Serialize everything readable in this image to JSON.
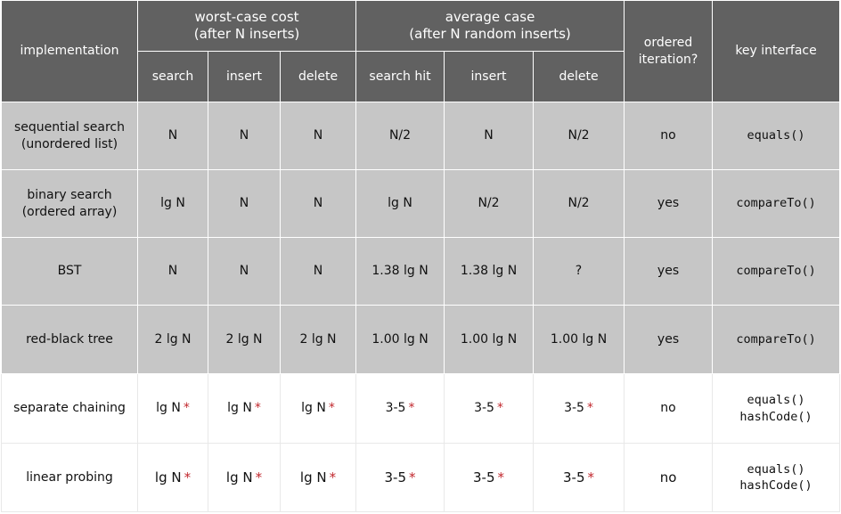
{
  "header": {
    "implementation": "implementation",
    "worst_title": "worst-case cost",
    "worst_sub": "(after N inserts)",
    "avg_title": "average case",
    "avg_sub": "(after N random inserts)",
    "ordered": "ordered iteration?",
    "key": "key interface",
    "worst_cols": [
      "search",
      "insert",
      "delete"
    ],
    "avg_cols": [
      "search hit",
      "insert",
      "delete"
    ]
  },
  "rows": [
    {
      "name": [
        "sequential search",
        "(unordered list)"
      ],
      "worst": [
        "N",
        "N",
        "N"
      ],
      "avg": [
        "N/2",
        "N",
        "N/2"
      ],
      "ordered": "no",
      "key": [
        "equals()"
      ]
    },
    {
      "name": [
        "binary search",
        "(ordered array)"
      ],
      "worst": [
        "lg N",
        "N",
        "N"
      ],
      "avg": [
        "lg N",
        "N/2",
        "N/2"
      ],
      "ordered": "yes",
      "key": [
        "compareTo()"
      ]
    },
    {
      "name": [
        "BST"
      ],
      "worst": [
        "N",
        "N",
        "N"
      ],
      "avg": [
        "1.38 lg N",
        "1.38 lg N",
        "?"
      ],
      "ordered": "yes",
      "key": [
        "compareTo()"
      ]
    },
    {
      "name": [
        "red-black tree"
      ],
      "worst": [
        "2 lg N",
        "2 lg N",
        "2 lg N"
      ],
      "avg": [
        "1.00 lg N",
        "1.00 lg N",
        "1.00 lg N"
      ],
      "ordered": "yes",
      "key": [
        "compareTo()"
      ]
    },
    {
      "name": [
        "separate chaining"
      ],
      "worst": [
        "lg N",
        "lg N",
        "lg N"
      ],
      "avg": [
        "3-5",
        "3-5",
        "3-5"
      ],
      "ordered": "no",
      "key": [
        "equals()",
        "hashCode()"
      ]
    },
    {
      "name": [
        "linear probing"
      ],
      "worst": [
        "lg N",
        "lg N",
        "lg N"
      ],
      "avg": [
        "3-5",
        "3-5",
        "3-5"
      ],
      "ordered": "no",
      "key": [
        "equals()",
        "hashCode()"
      ]
    }
  ],
  "footnote_mark": "*",
  "colors": {
    "header_bg": "#616161",
    "row_gray": "#c6c6c6",
    "row_white": "#ffffff",
    "star": "#c1272d"
  }
}
